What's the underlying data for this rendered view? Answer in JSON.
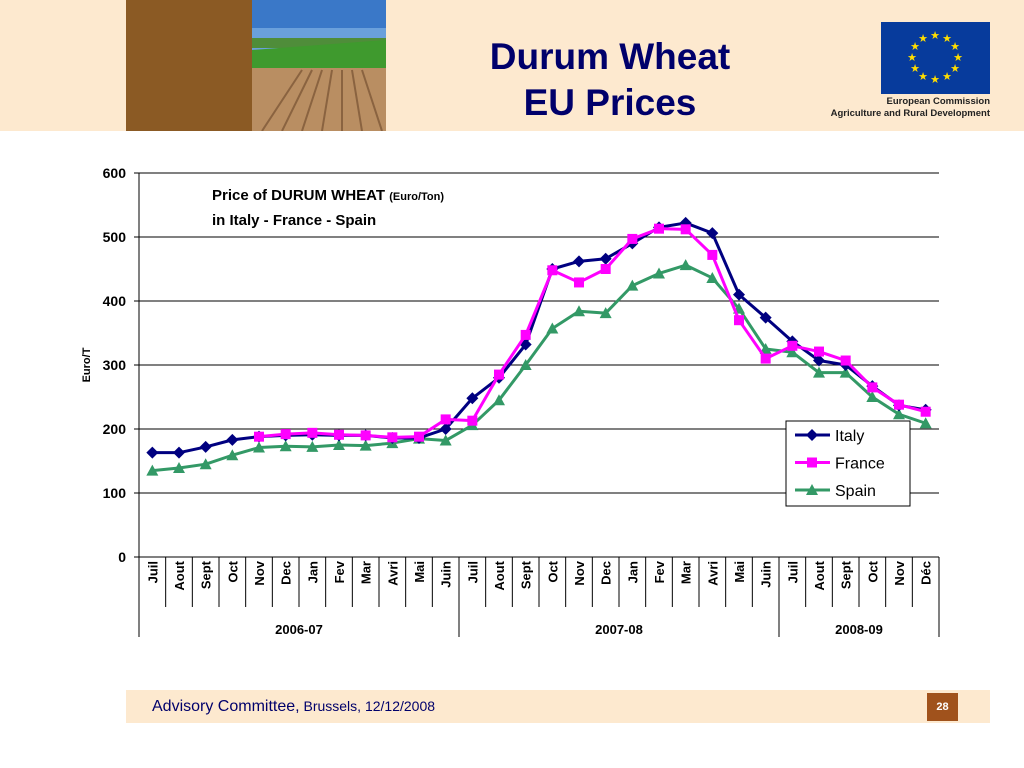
{
  "header": {
    "title_line1": "Durum Wheat",
    "title_line2": "EU Prices",
    "org_line1": "European Commission",
    "org_line2": "Agriculture and Rural Development"
  },
  "footer": {
    "committee": "Advisory Committee,",
    "location_date": " Brussels, 12/12/2008",
    "page_number": "28"
  },
  "chart_data": {
    "type": "line",
    "title": "Price of DURUM WHEAT",
    "title_unit": "(Euro/Ton)",
    "subtitle": "in Italy - France - Spain",
    "ylabel": "Euro/T",
    "ylim": [
      0,
      600
    ],
    "yticks": [
      0,
      100,
      200,
      300,
      400,
      500,
      600
    ],
    "grid": true,
    "legend_position": "bottom-right",
    "categories": [
      "Juil",
      "Aout",
      "Sept",
      "Oct",
      "Nov",
      "Dec",
      "Jan",
      "Fev",
      "Mar",
      "Avri",
      "Mai",
      "Juin",
      "Juil",
      "Aout",
      "Sept",
      "Oct",
      "Nov",
      "Dec",
      "Jan",
      "Fev",
      "Mar",
      "Avri",
      "Mai",
      "Juin",
      "Juil",
      "Aout",
      "Sept",
      "Oct",
      "Nov",
      "Déc"
    ],
    "groups": [
      {
        "label": "2006-07",
        "count": 12
      },
      {
        "label": "2007-08",
        "count": 12
      },
      {
        "label": "2008-09",
        "count": 6
      }
    ],
    "series": [
      {
        "name": "Italy",
        "color": "#000080",
        "marker": "diamond",
        "values": [
          163,
          163,
          172,
          183,
          188,
          190,
          191,
          190,
          190,
          186,
          186,
          200,
          248,
          280,
          332,
          450,
          462,
          466,
          490,
          515,
          522,
          506,
          410,
          374,
          337,
          307,
          300,
          267,
          237,
          230
        ]
      },
      {
        "name": "France",
        "color": "#ff00ff",
        "marker": "square",
        "values": [
          null,
          null,
          null,
          null,
          188,
          192,
          194,
          191,
          190,
          187,
          188,
          215,
          213,
          285,
          347,
          448,
          429,
          450,
          497,
          513,
          512,
          472,
          370,
          310,
          330,
          321,
          307,
          265,
          238,
          227
        ]
      },
      {
        "name": "Spain",
        "color": "#339966",
        "marker": "triangle",
        "values": [
          135,
          139,
          145,
          159,
          171,
          173,
          172,
          175,
          174,
          178,
          185,
          182,
          206,
          245,
          300,
          357,
          384,
          381,
          424,
          443,
          456,
          436,
          388,
          325,
          320,
          288,
          288,
          250,
          223,
          209
        ]
      }
    ]
  }
}
